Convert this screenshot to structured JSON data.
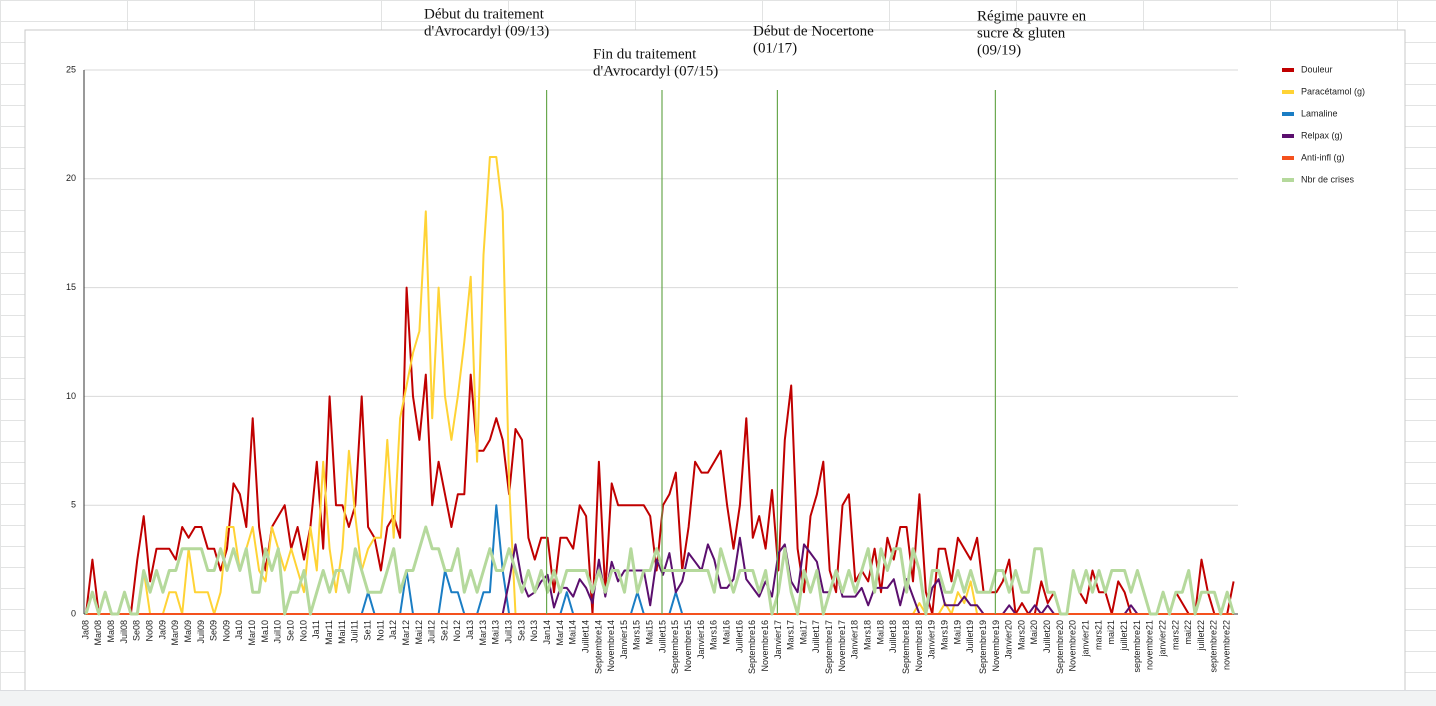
{
  "chart_data": {
    "type": "line",
    "categories": [
      "Ja08",
      null,
      "Mar08",
      null,
      "Ma08",
      null,
      "Juil08",
      null,
      "Se08",
      null,
      "No08",
      null,
      "Ja09",
      null,
      "Mar09",
      null,
      "Ma09",
      null,
      "Juil09",
      null,
      "Se09",
      null,
      "No09",
      null,
      "Ja10",
      null,
      "Mar10",
      null,
      "Ma10",
      null,
      "Juil10",
      null,
      "Se10",
      null,
      "No10",
      null,
      "Ja11",
      null,
      "Mar11",
      null,
      "Mai11",
      null,
      "Juil11",
      null,
      "Se11",
      null,
      "No11",
      null,
      "Ja12",
      null,
      "Mar12",
      null,
      "Mai12",
      null,
      "Juil12",
      null,
      "Se12",
      null,
      "No12",
      null,
      "Ja13",
      null,
      "Mar13",
      null,
      "Mai13",
      null,
      "Juil13",
      null,
      "Se13",
      null,
      "No13",
      null,
      "Jan14",
      null,
      "Mar14",
      null,
      "Mai14",
      null,
      "Juillet14",
      null,
      "Septembre14",
      null,
      "Novembre14",
      null,
      "Janvier15",
      null,
      "Mars15",
      null,
      "Mai15",
      null,
      "Juillet15",
      null,
      "Septembre15",
      null,
      "Novembre15",
      null,
      "Janvier16",
      null,
      "Mars16",
      null,
      "Mai16",
      null,
      "Juillet16",
      null,
      "Septembre16",
      null,
      "Novembre16",
      null,
      "Janvier17",
      null,
      "Mars17",
      null,
      "Mai17",
      null,
      "Juillet17",
      null,
      "Septembre17",
      null,
      "Novembre17",
      null,
      "Janvier18",
      null,
      "Mars18",
      null,
      "Mai18",
      null,
      "Juillet18",
      null,
      "Septembre18",
      null,
      "Novembre18",
      null,
      "Janvier19",
      null,
      "Mars19",
      null,
      "Mai19",
      null,
      "Juillet19",
      null,
      "Septembre19",
      null,
      "Novembre19",
      null,
      "Janvier20",
      null,
      "Mars20",
      null,
      "Mai20",
      null,
      "Juillet20",
      null,
      "Septembre20",
      null,
      "Novembre20",
      null,
      "janvier21",
      null,
      "mars21",
      null,
      "mai21",
      null,
      "juillet21",
      null,
      "septembre21",
      null,
      "novembre21",
      null,
      "janvier22",
      null,
      "mars22",
      null,
      "mai22",
      null,
      "juillet22",
      null,
      "septembre22",
      null,
      "novembre22",
      null
    ],
    "series": [
      {
        "name": "Douleur",
        "color": "#c00000",
        "values": [
          0,
          2.5,
          0,
          1,
          0,
          0,
          0,
          0,
          2.5,
          4.5,
          1.5,
          3,
          3,
          3,
          2.5,
          4,
          3.5,
          4,
          4,
          3,
          3,
          2,
          3,
          6,
          5.5,
          4,
          9,
          4,
          2,
          4,
          4.5,
          5,
          3,
          4,
          2.5,
          4,
          7,
          3,
          10,
          5,
          5,
          4,
          5,
          10,
          4,
          3.5,
          2,
          4,
          4.5,
          3.5,
          15,
          10,
          8,
          11,
          5,
          7,
          5.5,
          4,
          5.5,
          5.5,
          11,
          7.5,
          7.5,
          8,
          9,
          8,
          5.5,
          8.5,
          8,
          3.5,
          2.5,
          3.5,
          3.5,
          1,
          3.5,
          3.5,
          3,
          5,
          4.5,
          0,
          7,
          1,
          6,
          5,
          5,
          5,
          5,
          5,
          4.5,
          2,
          5,
          5.5,
          6.5,
          2,
          4,
          7,
          6.5,
          6.5,
          7,
          7.5,
          5,
          3,
          5,
          9,
          3.5,
          4.5,
          3,
          5.7,
          2,
          8,
          10.5,
          3,
          1,
          4.5,
          5.5,
          7,
          2,
          1,
          5,
          5.5,
          1.5,
          2,
          1.5,
          3,
          1,
          3.5,
          2.5,
          4,
          4,
          1.5,
          5.5,
          1,
          0,
          3,
          3,
          1.5,
          3.5,
          3,
          2.5,
          3.5,
          1,
          1,
          1,
          1.5,
          2.5,
          0,
          0.5,
          0,
          0,
          1.5,
          0.5,
          1,
          0,
          0,
          2,
          1,
          0.5,
          2,
          1,
          1,
          0,
          1.5,
          1,
          0,
          0,
          0,
          0,
          0,
          0,
          0,
          1,
          0.5,
          0,
          0,
          2.5,
          1,
          0,
          0,
          0,
          1.5
        ]
      },
      {
        "name": "Paracétamol (g)",
        "color": "#ffd335",
        "values": [
          0,
          0,
          0,
          0,
          0,
          0,
          0,
          0,
          0,
          2,
          0,
          0,
          0,
          1,
          1,
          0,
          3,
          1,
          1,
          1,
          0,
          1,
          4,
          4,
          2,
          3,
          4,
          2,
          1.5,
          4,
          3,
          2,
          3,
          2,
          1,
          4,
          2,
          7,
          3,
          1,
          3,
          7.5,
          4.5,
          2,
          3,
          3.5,
          3.5,
          8,
          3.5,
          9,
          10.5,
          12,
          13,
          18.5,
          9,
          15,
          10,
          8,
          10,
          12.5,
          15.5,
          7,
          16.5,
          21,
          21,
          18.5,
          6,
          0,
          0,
          0,
          0,
          0,
          0,
          0,
          0,
          0,
          0,
          0,
          0,
          0,
          0,
          0,
          0,
          0,
          0,
          0,
          0,
          0,
          0,
          0,
          0,
          0,
          0,
          0,
          0,
          0,
          0,
          0,
          0,
          0,
          0,
          0,
          0,
          0,
          0,
          0,
          0,
          0,
          0,
          0,
          0,
          0,
          0,
          0,
          0,
          0,
          0,
          0,
          0,
          0,
          0,
          0,
          0,
          0,
          0,
          0,
          0,
          0,
          0,
          0,
          0.5,
          0,
          0,
          0,
          0.5,
          0,
          1,
          0.5,
          1.5,
          0,
          0,
          0,
          0,
          0,
          0,
          0,
          0,
          0,
          0,
          0,
          0,
          0,
          0,
          0,
          0,
          0,
          0,
          0,
          0,
          0,
          0,
          0,
          0,
          0,
          0,
          0,
          0,
          0,
          0,
          0,
          0,
          0,
          0,
          0,
          0,
          0,
          0,
          0,
          0,
          0
        ]
      },
      {
        "name": "Lamaline",
        "color": "#1a7dc4",
        "values": [
          0,
          0,
          0,
          0,
          0,
          0,
          0,
          0,
          0,
          0,
          0,
          0,
          0,
          0,
          0,
          0,
          0,
          0,
          0,
          0,
          0,
          0,
          0,
          0,
          0,
          0,
          0,
          0,
          0,
          0,
          0,
          0,
          0,
          0,
          0,
          0,
          0,
          0,
          0,
          0,
          0,
          0,
          0,
          0,
          1,
          0,
          0,
          0,
          0,
          0,
          2,
          0,
          0,
          0,
          0,
          0,
          2,
          1,
          1,
          0,
          0,
          0,
          1,
          1,
          5,
          2,
          0,
          0,
          0,
          0,
          0,
          0,
          0,
          0,
          0,
          1,
          0,
          0,
          0,
          0,
          0,
          0,
          0,
          0,
          0,
          0,
          1,
          0,
          0,
          0,
          0,
          0,
          1,
          0,
          0,
          0,
          0,
          0,
          0,
          0,
          0,
          0,
          0,
          0,
          0,
          0,
          0,
          0,
          0,
          0,
          0,
          0,
          0,
          0,
          0,
          0,
          0,
          0,
          0,
          0,
          0,
          0,
          0,
          0,
          0,
          0,
          0,
          0,
          0,
          0,
          0,
          0,
          0,
          0,
          0,
          0,
          0,
          0,
          0,
          0,
          0,
          0,
          0,
          0,
          0,
          0,
          0,
          0,
          0,
          0,
          0,
          0,
          0,
          0,
          0,
          0,
          0,
          0,
          0,
          0,
          0,
          0,
          0,
          0,
          0,
          0,
          0,
          0,
          0,
          0,
          0,
          0,
          0,
          0,
          0,
          0,
          0,
          0,
          0,
          0
        ]
      },
      {
        "name": "Relpax (g)",
        "color": "#5b0f6e",
        "values": [
          0,
          0,
          0,
          0,
          0,
          0,
          0,
          0,
          0,
          0,
          0,
          0,
          0,
          0,
          0,
          0,
          0,
          0,
          0,
          0,
          0,
          0,
          0,
          0,
          0,
          0,
          0,
          0,
          0,
          0,
          0,
          0,
          0,
          0,
          0,
          0,
          0,
          0,
          0,
          0,
          0,
          0,
          0,
          0,
          0,
          0,
          0,
          0,
          0,
          0,
          0,
          0,
          0,
          0,
          0,
          0,
          0,
          0,
          0,
          0,
          0,
          0,
          0,
          0,
          0,
          0,
          1.5,
          3.2,
          1.5,
          0.8,
          1,
          1.5,
          1.8,
          0.3,
          1.2,
          1.2,
          0.8,
          1.6,
          1.2,
          0.5,
          2.5,
          0.8,
          2.4,
          1.5,
          2,
          2,
          2,
          2,
          0.4,
          2.5,
          1.8,
          2.8,
          1,
          1.5,
          2.8,
          2.4,
          2,
          3.2,
          2.5,
          1.2,
          1.2,
          1.6,
          3.5,
          1.6,
          1.2,
          0.8,
          1.5,
          0.8,
          2.8,
          3.2,
          1.5,
          1,
          3.2,
          2.8,
          2.4,
          1,
          1,
          2,
          0.8,
          0.8,
          0.8,
          1.2,
          0.4,
          1.2,
          1.2,
          1.2,
          1.6,
          0.4,
          1.6,
          0.8,
          0,
          0,
          1.2,
          1.6,
          0.4,
          0.4,
          0.4,
          0.8,
          0.4,
          0.4,
          0,
          0,
          0,
          0,
          0.4,
          0,
          0,
          0,
          0.4,
          0,
          0.4,
          0,
          0,
          0,
          0,
          0,
          0,
          0,
          0,
          0,
          0,
          0,
          0,
          0.4,
          0,
          0,
          0,
          0,
          0,
          0,
          0,
          0,
          0,
          0,
          0,
          0,
          0,
          0,
          0,
          0
        ]
      },
      {
        "name": "Anti-infl (g)",
        "color": "#f4511e",
        "values": [
          0,
          0,
          0,
          0,
          0,
          0,
          0,
          0,
          0,
          0,
          0,
          0,
          0,
          0,
          0,
          0,
          0,
          0,
          0,
          0,
          0,
          0,
          0,
          0,
          0,
          0,
          0,
          0,
          0,
          0,
          0,
          0,
          0,
          0,
          0,
          0,
          0,
          0,
          0,
          0,
          0,
          0,
          0,
          0,
          0,
          0,
          0,
          0,
          0,
          0,
          0,
          0,
          0,
          0,
          0,
          0,
          0,
          0,
          0,
          0,
          0,
          0,
          0,
          0,
          0,
          0,
          0,
          0,
          0,
          0,
          0,
          0,
          0,
          0,
          0,
          0,
          0,
          0,
          0,
          0,
          0,
          0,
          0,
          0,
          0,
          0,
          0,
          0,
          0,
          0,
          0,
          0,
          0,
          0,
          0,
          0,
          0,
          0,
          0,
          0,
          0,
          0,
          0,
          0,
          0,
          0,
          0,
          0,
          0,
          0,
          0,
          0,
          0,
          0,
          0,
          0,
          0,
          0,
          0,
          0,
          0,
          0,
          0,
          0,
          0,
          0,
          0,
          0,
          0,
          0,
          0,
          0,
          0,
          0,
          0,
          0,
          0,
          0,
          0,
          0,
          0,
          0,
          0,
          0,
          0,
          0,
          0,
          0,
          0,
          0,
          0,
          0,
          0,
          0,
          0,
          0,
          0,
          0,
          0,
          0,
          0,
          0,
          0,
          0,
          0,
          0,
          0,
          0,
          0,
          0,
          0,
          0,
          0,
          0,
          0,
          0,
          0,
          0,
          0,
          0
        ]
      },
      {
        "name": "Nbr de crises",
        "color": "#b5d99c",
        "values": [
          0,
          1,
          0,
          1,
          0,
          0,
          1,
          0,
          0,
          2,
          1,
          2,
          1,
          2,
          2,
          3,
          3,
          3,
          3,
          2,
          2,
          3,
          2,
          3,
          2,
          3,
          1,
          1,
          3,
          2,
          3,
          0,
          1,
          1,
          2,
          0,
          1,
          2,
          1,
          2,
          2,
          1,
          3,
          2,
          1,
          1,
          1,
          2,
          3,
          1,
          2,
          2,
          3,
          4,
          3,
          3,
          2,
          2,
          3,
          1,
          2,
          1,
          2,
          3,
          2,
          2,
          3,
          2,
          1,
          2,
          1,
          2,
          1,
          2,
          1,
          2,
          2,
          2,
          2,
          1,
          2,
          1,
          2,
          2,
          1,
          3,
          1,
          2,
          2,
          3,
          2,
          2,
          2,
          2,
          2,
          2,
          2,
          2,
          1,
          3,
          2,
          1,
          2,
          2,
          2,
          1,
          2,
          0,
          1,
          3,
          1,
          0,
          2,
          1,
          2,
          0,
          1,
          2,
          1,
          2,
          1,
          2,
          3,
          1,
          3,
          2,
          3,
          3,
          1,
          3,
          2,
          0,
          2,
          2,
          1,
          1,
          2,
          1,
          2,
          1,
          1,
          1,
          2,
          2,
          1,
          2,
          1,
          1,
          3,
          3,
          1,
          1,
          0,
          0,
          2,
          1,
          2,
          1,
          2,
          1,
          2,
          2,
          2,
          1,
          2,
          1,
          0,
          0,
          1,
          0,
          1,
          1,
          2,
          0,
          1,
          1,
          1,
          0,
          1,
          0
        ]
      }
    ],
    "ylim": [
      0,
      25
    ],
    "yticks": [
      0,
      5,
      10,
      15,
      20,
      25
    ],
    "grid": true,
    "legend": "right",
    "annotations": [
      {
        "lines": [
          "Début du traitement",
          "d'Avrocardyl (09/13)"
        ],
        "x": "Jan14",
        "color": "#6aa84f"
      },
      {
        "lines": [
          "Fin du traitement",
          "d'Avrocardyl (07/15)"
        ],
        "x": "Juillet15",
        "color": "#6aa84f"
      },
      {
        "lines": [
          "Début de Nocertone",
          "(01/17)"
        ],
        "x": "Janvier17",
        "color": "#6aa84f"
      },
      {
        "lines": [
          "Régime pauvre en",
          "sucre & gluten",
          "(09/19)"
        ],
        "x": "Novembre19",
        "color": "#6aa84f"
      }
    ]
  }
}
